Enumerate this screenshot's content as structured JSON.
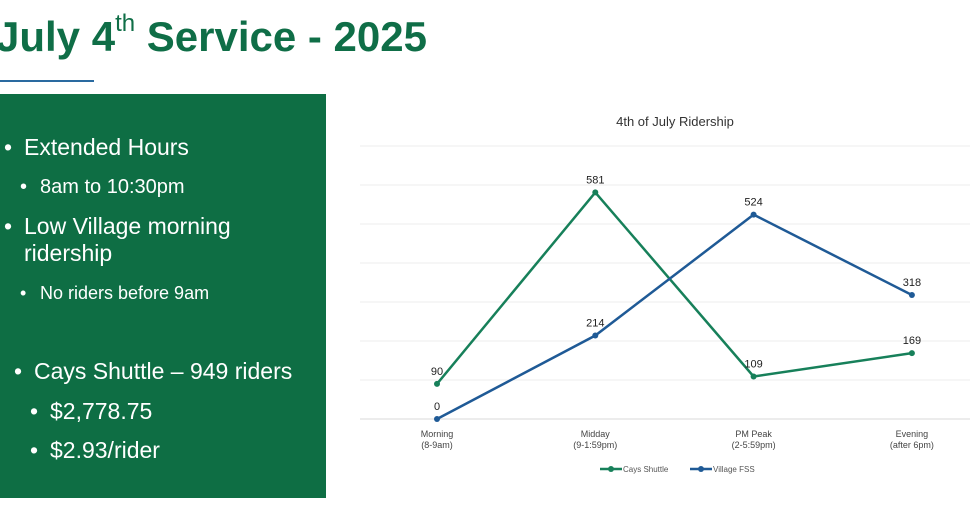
{
  "slide": {
    "title_pre": "July 4",
    "title_sup": "th",
    "title_post": " Service - 2025",
    "bullets": [
      {
        "text": "Extended Hours",
        "level": 1
      },
      {
        "text": "8am to 10:30pm",
        "level": 2
      },
      {
        "text": "Low Village morning",
        "level": 1
      },
      {
        "text": "ridership",
        "level": 1
      },
      {
        "text": "No riders before 9am",
        "level": 3
      },
      {
        "text": "Cays Shuttle – 949 riders",
        "level": 1
      },
      {
        "text": "$2,778.75",
        "level": 1
      },
      {
        "text": "$2.93/rider",
        "level": 1
      }
    ]
  },
  "colors": {
    "brand": "#0e6e44",
    "cays": "#17805a",
    "village": "#1f5a96"
  },
  "chart_data": {
    "type": "line",
    "title": "4th of July Ridership",
    "categories": [
      [
        "Morning",
        "(8-9am)"
      ],
      [
        "Midday",
        "(9-1:59pm)"
      ],
      [
        "PM Peak",
        "(2-5:59pm)"
      ],
      [
        "Evening",
        "(after 6pm)"
      ]
    ],
    "series": [
      {
        "name": "Cays Shuttle",
        "values": [
          90,
          581,
          109,
          169
        ],
        "color": "#17805a"
      },
      {
        "name": "Village FSS",
        "values": [
          0,
          214,
          524,
          318
        ],
        "color": "#1f5a96"
      }
    ],
    "ylim": [
      0,
      700
    ],
    "grid": true,
    "legend": "bottom",
    "data_labels": true
  }
}
